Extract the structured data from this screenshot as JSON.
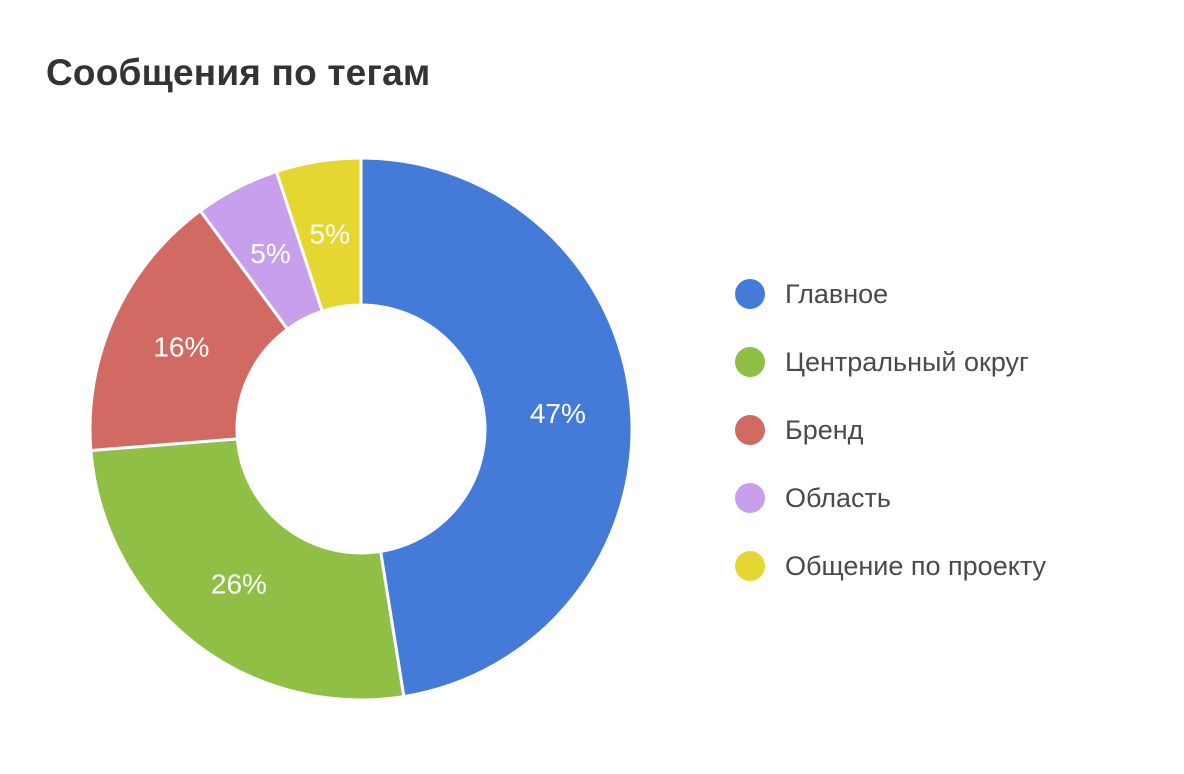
{
  "title": "Сообщения по тегам",
  "chart_data": {
    "type": "pie",
    "variant": "donut",
    "title": "Сообщения по тегам",
    "legend_position": "right",
    "categories": [
      "Главное",
      "Центральный округ",
      "Бренд",
      "Область",
      "Общение по проекту"
    ],
    "values": [
      47,
      26,
      16,
      5,
      5
    ],
    "labels": [
      "47%",
      "26%",
      "16%",
      "5%",
      "5%"
    ],
    "colors": [
      "#447bd9",
      "#8fc045",
      "#d06a62",
      "#c89fec",
      "#e6d632"
    ]
  }
}
